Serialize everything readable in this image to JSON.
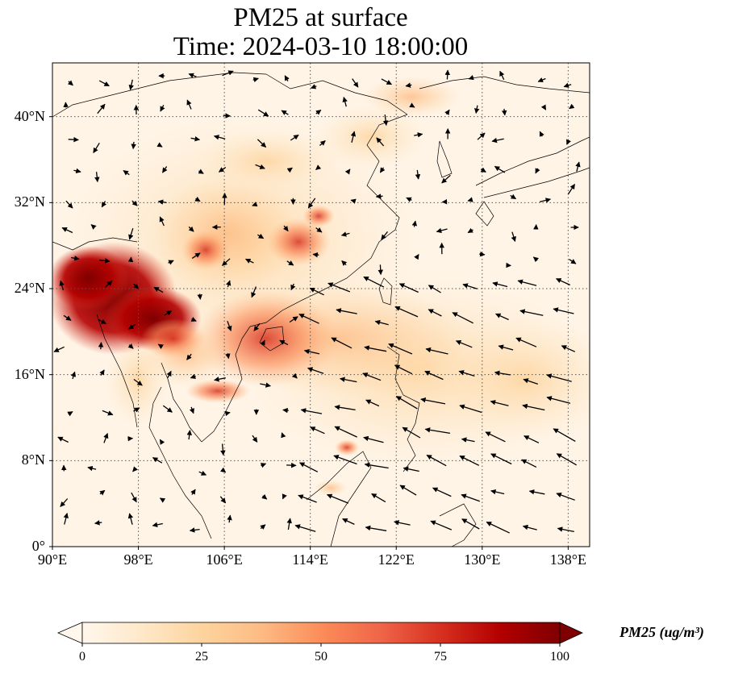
{
  "title": {
    "line1": "PM25 at surface",
    "line2": "Time: 2024-03-10 18:00:00"
  },
  "map": {
    "lon_range": [
      90,
      140
    ],
    "lat_range": [
      0,
      45
    ],
    "lat_ticks": [
      {
        "value": 0,
        "label": "0°"
      },
      {
        "value": 8,
        "label": "8°N"
      },
      {
        "value": 16,
        "label": "16°N"
      },
      {
        "value": 24,
        "label": "24°N"
      },
      {
        "value": 32,
        "label": "32°N"
      },
      {
        "value": 40,
        "label": "40°N"
      }
    ],
    "lon_ticks": [
      {
        "value": 90,
        "label": "90°E"
      },
      {
        "value": 98,
        "label": "98°E"
      },
      {
        "value": 106,
        "label": "106°E"
      },
      {
        "value": 114,
        "label": "114°E"
      },
      {
        "value": 122,
        "label": "122°E"
      },
      {
        "value": 130,
        "label": "130°E"
      },
      {
        "value": 138,
        "label": "138°E"
      }
    ],
    "gridlines": "dotted",
    "field": "PM25",
    "vectors": "wind arrows"
  },
  "colorbar": {
    "ticks": [
      "0",
      "25",
      "50",
      "75",
      "100"
    ],
    "label": "PM25 (ug/m³)",
    "colormap": "OrRd",
    "range": [
      0,
      100
    ],
    "extend": "both",
    "colors": [
      "#fff7ec",
      "#fee8c8",
      "#fdd49e",
      "#fdbb84",
      "#fc8d59",
      "#ef6548",
      "#d7301f",
      "#b30000",
      "#7f0000"
    ]
  }
}
